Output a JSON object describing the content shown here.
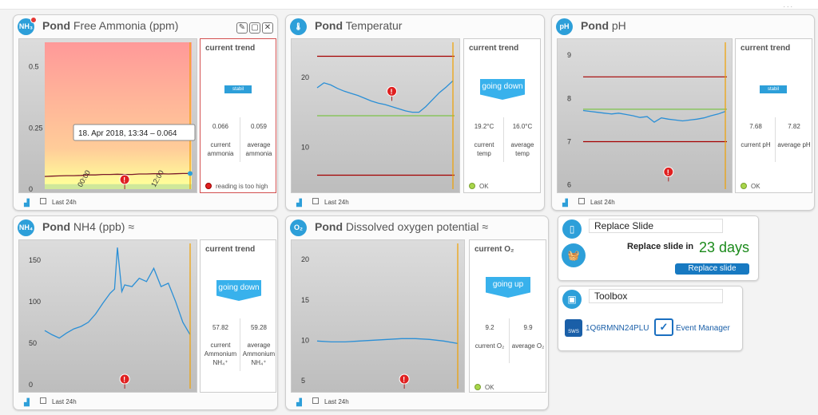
{
  "topbar": {
    "dots": "..."
  },
  "ammonia": {
    "icon": "NH₃",
    "bold": "Pond",
    "title": "Free Ammonia (ppm)",
    "y_ticks": [
      "0.5",
      "0.25",
      "0"
    ],
    "x_ticks": [
      "00:00",
      "12:00"
    ],
    "tooltip": "18. Apr 2018, 13:34 – 0.064",
    "trend_title": "current trend",
    "badge": "stabil",
    "current_value": "0.066",
    "current_label": "current ammonia",
    "average_value": "0.059",
    "average_label": "average ammonia",
    "status": "reading is too high",
    "footer": "Last 24h"
  },
  "temperature": {
    "bold": "Pond",
    "title": "Temperatur",
    "y_ticks": [
      "20",
      "10"
    ],
    "trend_title": "current trend",
    "badge": "going down",
    "current_value": "19.2°C",
    "current_label": "current temp",
    "average_value": "16.0°C",
    "average_label": "average temp",
    "status": "OK",
    "footer": "Last 24h"
  },
  "ph": {
    "icon": "pH",
    "bold": "Pond",
    "title": "pH",
    "y_ticks": [
      "9",
      "8",
      "7",
      "6"
    ],
    "trend_title": "current trend",
    "badge": "stabil",
    "current_value": "7.68",
    "current_label": "current pH",
    "average_value": "7.82",
    "average_label": "average pH",
    "status": "OK",
    "footer": "Last 24h"
  },
  "nh4": {
    "icon": "NH₄",
    "bold": "Pond",
    "title": "NH4 (ppb) ≈",
    "y_ticks": [
      "150",
      "100",
      "50",
      "0"
    ],
    "trend_title": "current trend",
    "badge": "going down",
    "current_value": "57.82",
    "current_label": "current Ammonium NH₄⁺",
    "average_value": "59.28",
    "average_label": "average Ammonium NH₄⁺",
    "footer": "Last 24h"
  },
  "oxygen": {
    "icon": "O₂",
    "bold": "Pond",
    "title": "Dissolved oxygen potential ≈",
    "y_ticks": [
      "20",
      "15",
      "10",
      "5"
    ],
    "trend_title": "current O₂",
    "badge": "going up",
    "current_value": "9.2",
    "current_label": "current O₂",
    "average_value": "9.9",
    "average_label": "average O₂",
    "status": "OK",
    "footer": "Last 24h"
  },
  "replace_slide": {
    "title": "Replace Slide",
    "label": "Replace slide in",
    "days": "23 days",
    "button": "Replace slide"
  },
  "toolbox": {
    "title": "Toolbox",
    "device": "1Q6RMNN24PLU",
    "device_icon_text": "SWS",
    "event_manager": "Event Manager"
  },
  "colors": {
    "accent": "#2d9fd9",
    "line": "#2a8fd6",
    "limit_red": "#a50000",
    "limit_green": "#7cc34a",
    "now_line": "#f0a000"
  },
  "chart_data": [
    {
      "id": "ammonia",
      "type": "line",
      "title": "Free Ammonia (ppm)",
      "ylim": [
        0,
        0.6
      ],
      "y_ticks": [
        0.5,
        0.25,
        0
      ],
      "x_ticks": [
        "00:00",
        "12:00"
      ],
      "thresholds": {
        "warn_band_from": 0.02,
        "warn_band_to": 0.06
      },
      "x": [
        0,
        0.05,
        0.1,
        0.15,
        0.2,
        0.25,
        0.3,
        0.35,
        0.4,
        0.45,
        0.5,
        0.55,
        0.6,
        0.65,
        0.7,
        0.75,
        0.8,
        0.85,
        0.9,
        0.95,
        1.0
      ],
      "values": [
        0.052,
        0.053,
        0.054,
        0.055,
        0.055,
        0.056,
        0.058,
        0.058,
        0.06,
        0.06,
        0.061,
        0.06,
        0.06,
        0.062,
        0.062,
        0.063,
        0.063,
        0.062,
        0.063,
        0.064,
        0.064
      ],
      "alert_x": 0.55
    },
    {
      "id": "temperature",
      "type": "line",
      "title": "Temperatur",
      "ylim": [
        4,
        25
      ],
      "y_ticks": [
        20,
        10
      ],
      "limits": {
        "red_high": 23,
        "red_low": 6,
        "green": 14.5
      },
      "x": [
        0,
        0.05,
        0.1,
        0.15,
        0.2,
        0.25,
        0.3,
        0.35,
        0.4,
        0.45,
        0.5,
        0.55,
        0.6,
        0.65,
        0.7,
        0.75,
        0.8,
        0.85,
        0.9,
        0.95,
        1.0
      ],
      "values": [
        18.5,
        19.2,
        18.9,
        18.4,
        18,
        17.7,
        17.4,
        17,
        16.6,
        16.3,
        16.1,
        15.8,
        15.5,
        15.2,
        15,
        15,
        15.8,
        16.8,
        17.8,
        18.6,
        19.5
      ],
      "alert_x": 0.55
    },
    {
      "id": "ph",
      "type": "line",
      "title": "pH",
      "ylim": [
        5.9,
        9.3
      ],
      "y_ticks": [
        9,
        8,
        7,
        6
      ],
      "limits": {
        "red_high": 8.5,
        "red_low": 7,
        "green": 7.75
      },
      "x": [
        0,
        0.05,
        0.1,
        0.15,
        0.2,
        0.25,
        0.3,
        0.35,
        0.4,
        0.45,
        0.5,
        0.55,
        0.6,
        0.65,
        0.7,
        0.75,
        0.8,
        0.85,
        0.9,
        0.95,
        1.0
      ],
      "values": [
        7.72,
        7.7,
        7.68,
        7.66,
        7.64,
        7.66,
        7.63,
        7.6,
        7.56,
        7.58,
        7.45,
        7.55,
        7.52,
        7.5,
        7.48,
        7.5,
        7.52,
        7.55,
        7.6,
        7.64,
        7.7
      ],
      "alert_x": 0.6
    },
    {
      "id": "nh4",
      "type": "line",
      "title": "NH4 (ppb)",
      "ylim": [
        -5,
        170
      ],
      "y_ticks": [
        150,
        100,
        50,
        0
      ],
      "x": [
        0,
        0.05,
        0.1,
        0.15,
        0.2,
        0.25,
        0.3,
        0.35,
        0.4,
        0.45,
        0.48,
        0.5,
        0.53,
        0.55,
        0.6,
        0.65,
        0.7,
        0.75,
        0.8,
        0.85,
        0.9,
        0.95,
        1.0
      ],
      "values": [
        65,
        60,
        56,
        62,
        67,
        70,
        75,
        85,
        98,
        110,
        115,
        165,
        112,
        120,
        118,
        128,
        124,
        140,
        118,
        122,
        100,
        75,
        60
      ],
      "alert_x": 0.55
    },
    {
      "id": "oxygen",
      "type": "line",
      "title": "Dissolved oxygen potential",
      "ylim": [
        4,
        22
      ],
      "y_ticks": [
        20,
        15,
        10,
        5
      ],
      "x": [
        0,
        0.1,
        0.2,
        0.3,
        0.4,
        0.5,
        0.6,
        0.7,
        0.8,
        0.9,
        1.0
      ],
      "values": [
        9.9,
        9.8,
        9.8,
        9.9,
        10,
        10.1,
        10.2,
        10.2,
        10.1,
        9.9,
        9.6
      ],
      "alert_x": 0.62
    }
  ]
}
